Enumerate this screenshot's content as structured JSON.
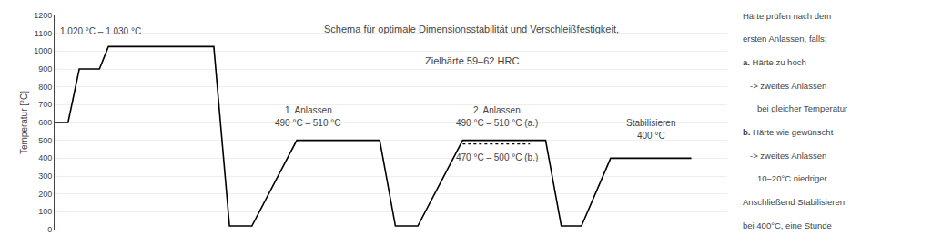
{
  "chart_data": {
    "type": "line",
    "title": "Schema für optimale Dimensionsstabilität und Verschleißfestigkeit,",
    "subtitle": "Zielhärte 59–62 HRC",
    "y_label": "Temperatur [°C]",
    "xlim": [
      0,
      15.0
    ],
    "xticks": [],
    "ylim": [
      0,
      1200
    ],
    "yticks": [
      0,
      100,
      200,
      300,
      400,
      500,
      600,
      700,
      800,
      900,
      1000,
      1100,
      1200
    ],
    "tick_labels": "y",
    "grid": "y",
    "series": [
      {
        "x": [
          0.0,
          0.3,
          0.55,
          1.0,
          1.2,
          2.0,
          3.2,
          3.55,
          3.9,
          4.4,
          5.4,
          6.9,
          7.25,
          7.6,
          8.1,
          9.1,
          10.6,
          10.95,
          11.3,
          11.75,
          12.4,
          14.2
        ],
        "values": [
          600,
          600,
          900,
          900,
          1025,
          1025,
          1025,
          1025,
          20,
          20,
          500,
          500,
          500,
          20,
          20,
          500,
          500,
          500,
          20,
          20,
          400,
          400
        ],
        "color": "#000000",
        "line_style": "solid"
      },
      {
        "x": [
          9.1,
          10.6
        ],
        "values": [
          480,
          480
        ],
        "color": "#000000",
        "line_style": "dotted"
      }
    ],
    "annotations": [
      "1.020 °C – 1.030 °C",
      "1. Anlassen",
      "490 °C – 510 °C",
      "2. Anlassen",
      "490 °C – 510 °C (a.)",
      "470 °C – 500 °C (b.)",
      "Stabilisieren",
      "400 °C"
    ],
    "notes": [
      "Härte prüfen nach dem",
      "ersten Anlassen, falls:",
      "a. Härte zu hoch",
      "-> zweites Anlassen",
      "bei gleicher Temperatur",
      "b. Härte wie gewünscht",
      "-> zweites Anlassen",
      "10–20°C niedriger",
      "Anschließend Stabilisieren",
      "bei 400°C, eine Stunde"
    ]
  }
}
